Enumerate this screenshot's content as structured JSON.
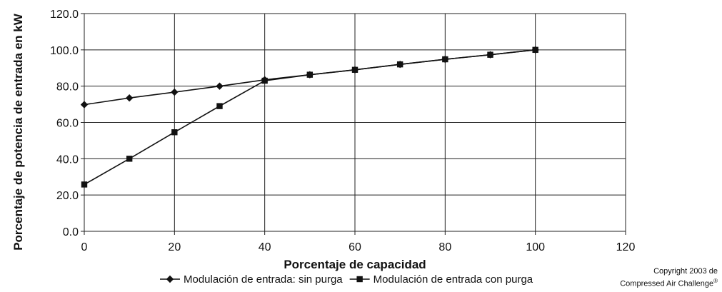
{
  "chart_data": {
    "type": "line",
    "title": "",
    "xlabel": "Porcentaje de capacidad",
    "ylabel": "Porcentaje de potencia de entrada en kW",
    "xlim": [
      0,
      120
    ],
    "ylim": [
      0,
      120
    ],
    "x_ticks": [
      0,
      20,
      40,
      60,
      80,
      100,
      120
    ],
    "x_tick_labels": [
      "0",
      "20",
      "40",
      "60",
      "80",
      "100",
      "120"
    ],
    "y_ticks": [
      0,
      20,
      40,
      60,
      80,
      100,
      120
    ],
    "y_tick_labels": [
      "0.0",
      "20.0",
      "40.0",
      "60.0",
      "80.0",
      "100.0",
      "120.0"
    ],
    "grid": true,
    "legend_position": "bottom",
    "series": [
      {
        "name": "Modulación de entrada: sin purga",
        "marker": "diamond",
        "x": [
          0,
          10,
          20,
          30,
          40,
          50,
          60,
          70,
          80,
          90,
          100
        ],
        "values": [
          69.8,
          73.5,
          76.7,
          80.0,
          83.5,
          86.3,
          89.0,
          92.0,
          94.8,
          97.3,
          100.0
        ]
      },
      {
        "name": "Modulación de entrada con purga",
        "marker": "square",
        "x": [
          0,
          10,
          20,
          30,
          40,
          50,
          60,
          70,
          80,
          90,
          100
        ],
        "values": [
          25.8,
          40.0,
          54.6,
          69.0,
          83.0,
          86.3,
          89.0,
          92.0,
          94.8,
          97.3,
          100.0
        ]
      }
    ]
  },
  "copyright": {
    "line1": "Copyright 2003 de",
    "line2": "Compressed Air Challenge",
    "mark": "®"
  }
}
